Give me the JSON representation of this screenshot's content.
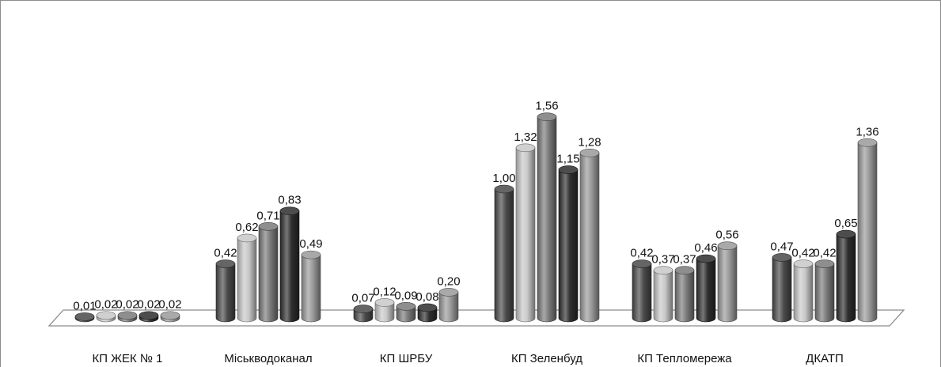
{
  "chart_data": {
    "type": "bar",
    "style": "3d-cylinder",
    "categories": [
      "КП ЖЕК № 1",
      "Міськводоканал",
      "КП ШРБУ",
      "КП Зеленбуд",
      "КП Тепломережа",
      "ДКАТП"
    ],
    "series": [
      {
        "values": [
          0.01,
          0.42,
          0.07,
          1.0,
          0.42,
          0.47
        ],
        "color": "#4a4a4a"
      },
      {
        "values": [
          0.02,
          0.62,
          0.12,
          1.32,
          0.37,
          0.42
        ],
        "color": "#c8c8c8"
      },
      {
        "values": [
          0.02,
          0.71,
          0.09,
          1.56,
          0.37,
          0.42
        ],
        "color": "#7a7a7a"
      },
      {
        "values": [
          0.02,
          0.83,
          0.08,
          1.15,
          0.46,
          0.65
        ],
        "color": "#2e2e2e"
      },
      {
        "values": [
          0.02,
          0.49,
          0.2,
          1.28,
          0.56,
          1.36
        ],
        "color": "#9a9a9a"
      }
    ],
    "data_labels": [
      [
        "0,01",
        "0,42",
        "0,07",
        "1,00",
        "0,42",
        "0,47"
      ],
      [
        "0,02",
        "0,62",
        "0,12",
        "1,32",
        "0,37",
        "0,42"
      ],
      [
        "0,02",
        "0,71",
        "0,09",
        "1,56",
        "0,37",
        "0,42"
      ],
      [
        "0,02",
        "0,83",
        "0,08",
        "1,15",
        "0,46",
        "0,65"
      ],
      [
        "0,02",
        "0,49",
        "0,20",
        "1,28",
        "0,56",
        "1,36"
      ]
    ],
    "title": "",
    "xlabel": "",
    "ylabel": "",
    "ylim": [
      0,
      1.6
    ],
    "grid": false,
    "legend": "none"
  }
}
